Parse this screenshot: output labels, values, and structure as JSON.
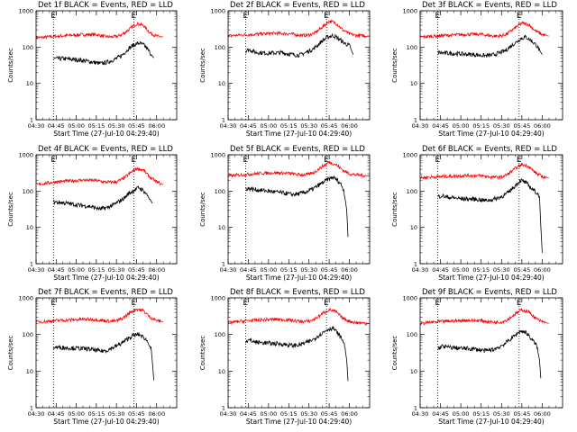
{
  "chart_data": {
    "type": "line",
    "layout": "3x3 grid",
    "grid": false,
    "ylabel": "Counts/sec",
    "xlabel": "Start Time (27-Jul-10 04:29:40)",
    "yscale": "log",
    "ylim": [
      1,
      1000
    ],
    "ytick_labels": [
      "1",
      "10",
      "100",
      "1000"
    ],
    "xlim_minutes_after_0430": [
      0,
      105
    ],
    "xtick_labels": [
      "04:30",
      "04:45",
      "05:00",
      "05:15",
      "05:30",
      "05:45",
      "06:00"
    ],
    "vlines_time": [
      "04:43",
      "05:43"
    ],
    "flag_labels": [
      "E",
      "E"
    ],
    "panels": [
      {
        "title": "Det 1f BLACK = Events, RED = LLD",
        "series": [
          {
            "color": "#ff0000",
            "t": [
              0,
              5,
              15,
              25,
              35,
              45,
              50,
              55,
              60,
              64,
              67,
              70,
              75,
              80,
              85,
              90,
              95
            ],
            "values": [
              180,
              185,
              200,
              210,
              220,
              220,
              200,
              190,
              195,
              220,
              260,
              320,
              440,
              400,
              250,
              200,
              190
            ]
          },
          {
            "color": "#000000",
            "t": [
              13,
              20,
              30,
              40,
              48,
              53,
              58,
              63,
              66,
              69,
              73,
              77,
              81,
              84,
              86,
              88
            ],
            "values": [
              48,
              48,
              45,
              40,
              35,
              38,
              45,
              55,
              70,
              90,
              115,
              130,
              110,
              80,
              62,
              50
            ]
          }
        ]
      },
      {
        "title": "Det 2f BLACK = Events, RED = LLD",
        "series": [
          {
            "color": "#ff0000",
            "t": [
              0,
              5,
              15,
              25,
              35,
              45,
              50,
              55,
              60,
              64,
              67,
              70,
              75,
              80,
              85,
              90,
              95,
              105
            ],
            "values": [
              200,
              210,
              220,
              230,
              240,
              235,
              220,
              210,
              215,
              240,
              290,
              360,
              520,
              460,
              300,
              230,
              210,
              200
            ]
          },
          {
            "color": "#000000",
            "t": [
              13,
              16,
              20,
              30,
              40,
              48,
              53,
              58,
              63,
              66,
              70,
              74,
              78,
              82,
              86,
              90,
              93
            ],
            "values": [
              80,
              85,
              72,
              68,
              70,
              62,
              60,
              72,
              88,
              110,
              150,
              190,
              210,
              170,
              130,
              110,
              60
            ]
          }
        ]
      },
      {
        "title": "Det 3f BLACK = Events, RED = LLD",
        "series": [
          {
            "color": "#ff0000",
            "t": [
              0,
              5,
              15,
              25,
              35,
              45,
              50,
              55,
              60,
              64,
              67,
              70,
              75,
              80,
              85,
              90,
              95
            ],
            "values": [
              190,
              195,
              205,
              215,
              225,
              225,
              210,
              200,
              205,
              230,
              280,
              340,
              460,
              420,
              280,
              220,
              200
            ]
          },
          {
            "color": "#000000",
            "t": [
              13,
              20,
              30,
              40,
              48,
              53,
              58,
              63,
              66,
              70,
              74,
              78,
              82,
              86,
              90
            ],
            "values": [
              70,
              68,
              65,
              62,
              58,
              60,
              68,
              80,
              100,
              130,
              170,
              190,
              150,
              110,
              62
            ]
          }
        ]
      },
      {
        "title": "Det 4f BLACK = Events, RED = LLD",
        "series": [
          {
            "color": "#ff0000",
            "t": [
              0,
              5,
              15,
              25,
              35,
              45,
              50,
              55,
              60,
              64,
              67,
              70,
              75,
              80,
              85,
              90,
              95
            ],
            "values": [
              150,
              160,
              180,
              190,
              200,
              195,
              180,
              175,
              180,
              210,
              250,
              310,
              420,
              380,
              240,
              180,
              150
            ]
          },
          {
            "color": "#000000",
            "t": [
              13,
              20,
              30,
              40,
              48,
              53,
              58,
              63,
              66,
              69,
              73,
              77,
              81,
              84,
              87
            ],
            "values": [
              50,
              48,
              42,
              38,
              32,
              35,
              42,
              55,
              65,
              85,
              105,
              125,
              95,
              70,
              45
            ]
          }
        ]
      },
      {
        "title": "Det 5f BLACK = Events, RED = LLD",
        "series": [
          {
            "color": "#ff0000",
            "t": [
              0,
              5,
              15,
              25,
              35,
              45,
              50,
              55,
              60,
              64,
              67,
              70,
              75,
              80,
              85,
              90,
              95,
              105
            ],
            "values": [
              260,
              270,
              290,
              310,
              320,
              310,
              290,
              280,
              290,
              330,
              400,
              480,
              620,
              540,
              380,
              300,
              280,
              260
            ]
          },
          {
            "color": "#000000",
            "t": [
              13,
              16,
              20,
              30,
              40,
              48,
              53,
              58,
              63,
              66,
              70,
              74,
              78,
              81,
              84,
              86,
              88,
              89
            ],
            "values": [
              115,
              118,
              110,
              100,
              90,
              80,
              85,
              95,
              115,
              135,
              170,
              210,
              240,
              200,
              150,
              100,
              30,
              5
            ]
          }
        ]
      },
      {
        "title": "Det 6f BLACK = Events, RED = LLD",
        "series": [
          {
            "color": "#ff0000",
            "t": [
              0,
              5,
              15,
              25,
              35,
              45,
              50,
              55,
              60,
              64,
              67,
              70,
              75,
              80,
              85,
              90,
              95
            ],
            "values": [
              230,
              240,
              250,
              260,
              270,
              265,
              250,
              240,
              245,
              280,
              340,
              420,
              540,
              480,
              320,
              250,
              230
            ]
          },
          {
            "color": "#000000",
            "t": [
              13,
              16,
              20,
              30,
              40,
              48,
              53,
              58,
              63,
              66,
              70,
              74,
              78,
              82,
              86,
              88,
              89,
              90
            ],
            "values": [
              70,
              75,
              68,
              62,
              60,
              55,
              58,
              66,
              80,
              100,
              140,
              200,
              170,
              120,
              90,
              70,
              10,
              2
            ]
          }
        ]
      },
      {
        "title": "Det 7f BLACK = Events, RED = LLD",
        "series": [
          {
            "color": "#ff0000",
            "t": [
              0,
              5,
              15,
              25,
              35,
              45,
              50,
              55,
              60,
              64,
              67,
              70,
              75,
              80,
              85,
              90,
              95
            ],
            "values": [
              220,
              225,
              240,
              250,
              260,
              255,
              240,
              230,
              235,
              270,
              320,
              390,
              500,
              450,
              300,
              240,
              220
            ]
          },
          {
            "color": "#000000",
            "t": [
              13,
              20,
              30,
              40,
              48,
              53,
              58,
              63,
              66,
              69,
              73,
              77,
              81,
              84,
              86,
              87,
              88
            ],
            "values": [
              45,
              44,
              42,
              40,
              35,
              37,
              45,
              55,
              65,
              80,
              95,
              100,
              80,
              60,
              40,
              15,
              5
            ]
          }
        ]
      },
      {
        "title": "Det 8f BLACK = Events, RED = LLD",
        "series": [
          {
            "color": "#ff0000",
            "t": [
              0,
              5,
              15,
              25,
              35,
              45,
              50,
              55,
              60,
              64,
              67,
              70,
              75,
              80,
              85,
              90,
              95,
              105
            ],
            "values": [
              210,
              220,
              240,
              250,
              260,
              250,
              235,
              225,
              230,
              260,
              310,
              370,
              480,
              420,
              280,
              230,
              210,
              200
            ]
          },
          {
            "color": "#000000",
            "t": [
              13,
              16,
              20,
              30,
              40,
              48,
              53,
              58,
              63,
              66,
              70,
              74,
              78,
              81,
              84,
              86,
              88,
              89
            ],
            "values": [
              65,
              70,
              62,
              58,
              55,
              50,
              52,
              60,
              72,
              88,
              110,
              140,
              150,
              110,
              80,
              60,
              20,
              5
            ]
          }
        ]
      },
      {
        "title": "Det 9f BLACK = Events, RED = LLD",
        "series": [
          {
            "color": "#ff0000",
            "t": [
              0,
              5,
              15,
              25,
              35,
              45,
              50,
              55,
              60,
              64,
              67,
              70,
              75,
              80,
              85,
              90,
              95
            ],
            "values": [
              200,
              210,
              225,
              235,
              245,
              240,
              225,
              215,
              220,
              250,
              300,
              360,
              470,
              420,
              280,
              220,
              200
            ]
          },
          {
            "color": "#000000",
            "t": [
              13,
              16,
              20,
              30,
              40,
              48,
              53,
              58,
              63,
              66,
              70,
              74,
              78,
              82,
              86,
              88,
              89
            ],
            "values": [
              40,
              48,
              45,
              42,
              40,
              36,
              38,
              45,
              58,
              72,
              95,
              125,
              115,
              75,
              50,
              20,
              6
            ]
          }
        ]
      }
    ]
  }
}
